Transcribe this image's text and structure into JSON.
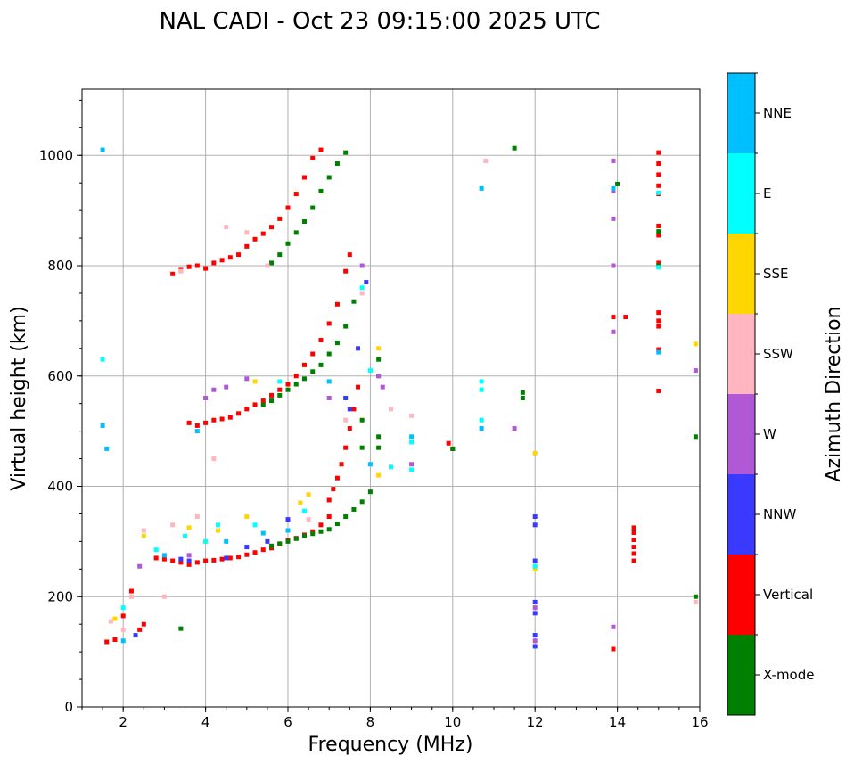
{
  "chart_data": {
    "type": "scatter",
    "title": "NAL CADI - Oct 23 09:15:00 2025 UTC",
    "xlabel": "Frequency (MHz)",
    "ylabel": "Virtual height (km)",
    "xlim": [
      1,
      16
    ],
    "ylim": [
      0,
      1120
    ],
    "xticks": [
      2,
      4,
      6,
      8,
      10,
      12,
      14,
      16
    ],
    "yticks": [
      0,
      200,
      400,
      600,
      800,
      1000
    ],
    "grid": true,
    "colorbar": {
      "label": "Azimuth Direction",
      "categories": [
        {
          "name": "X-mode",
          "color": "#008000"
        },
        {
          "name": "Vertical",
          "color": "#ff0000"
        },
        {
          "name": "NNW",
          "color": "#3a3aff"
        },
        {
          "name": "W",
          "color": "#b158d6"
        },
        {
          "name": "SSW",
          "color": "#ffb6c1"
        },
        {
          "name": "SSE",
          "color": "#ffd700"
        },
        {
          "name": "E",
          "color": "#00ffff"
        },
        {
          "name": "NNE",
          "color": "#00bfff"
        }
      ]
    },
    "series": [
      {
        "name": "Vertical",
        "points": [
          [
            1.6,
            118
          ],
          [
            1.8,
            122
          ],
          [
            2.0,
            165
          ],
          [
            2.2,
            210
          ],
          [
            2.4,
            140
          ],
          [
            2.5,
            150
          ],
          [
            2.8,
            270
          ],
          [
            3.0,
            268
          ],
          [
            3.2,
            265
          ],
          [
            3.4,
            262
          ],
          [
            3.6,
            258
          ],
          [
            3.8,
            262
          ],
          [
            4.0,
            265
          ],
          [
            4.2,
            266
          ],
          [
            4.4,
            268
          ],
          [
            4.6,
            270
          ],
          [
            4.8,
            272
          ],
          [
            5.0,
            276
          ],
          [
            5.2,
            280
          ],
          [
            5.4,
            285
          ],
          [
            5.6,
            288
          ],
          [
            5.8,
            295
          ],
          [
            6.0,
            302
          ],
          [
            6.2,
            306
          ],
          [
            6.4,
            312
          ],
          [
            6.6,
            318
          ],
          [
            6.8,
            330
          ],
          [
            7.0,
            345
          ],
          [
            7.0,
            375
          ],
          [
            7.1,
            395
          ],
          [
            7.2,
            415
          ],
          [
            7.3,
            440
          ],
          [
            7.4,
            470
          ],
          [
            7.5,
            505
          ],
          [
            7.6,
            540
          ],
          [
            7.7,
            580
          ],
          [
            3.6,
            515
          ],
          [
            3.8,
            510
          ],
          [
            4.0,
            515
          ],
          [
            4.2,
            520
          ],
          [
            4.4,
            522
          ],
          [
            4.6,
            525
          ],
          [
            4.8,
            532
          ],
          [
            5.0,
            540
          ],
          [
            5.2,
            548
          ],
          [
            5.4,
            555
          ],
          [
            5.6,
            565
          ],
          [
            5.8,
            575
          ],
          [
            6.0,
            585
          ],
          [
            6.2,
            600
          ],
          [
            6.4,
            620
          ],
          [
            6.6,
            640
          ],
          [
            6.8,
            665
          ],
          [
            7.0,
            695
          ],
          [
            7.2,
            730
          ],
          [
            7.4,
            790
          ],
          [
            7.5,
            820
          ],
          [
            3.2,
            785
          ],
          [
            3.4,
            792
          ],
          [
            3.6,
            798
          ],
          [
            3.8,
            800
          ],
          [
            4.0,
            795
          ],
          [
            4.2,
            805
          ],
          [
            4.4,
            810
          ],
          [
            4.6,
            815
          ],
          [
            4.8,
            820
          ],
          [
            5.0,
            835
          ],
          [
            5.2,
            848
          ],
          [
            5.4,
            858
          ],
          [
            5.6,
            870
          ],
          [
            5.8,
            885
          ],
          [
            6.0,
            905
          ],
          [
            6.2,
            930
          ],
          [
            6.4,
            960
          ],
          [
            6.6,
            995
          ],
          [
            6.8,
            1010
          ],
          [
            9.9,
            478
          ],
          [
            10.0,
            468
          ],
          [
            13.9,
            707
          ],
          [
            14.2,
            707
          ],
          [
            13.9,
            105
          ],
          [
            14.4,
            265
          ],
          [
            14.4,
            278
          ],
          [
            14.4,
            290
          ],
          [
            14.4,
            303
          ],
          [
            14.4,
            316
          ],
          [
            14.4,
            325
          ],
          [
            15.0,
            1005
          ],
          [
            15.0,
            985
          ],
          [
            15.0,
            965
          ],
          [
            15.0,
            945
          ],
          [
            15.0,
            930
          ],
          [
            15.0,
            872
          ],
          [
            15.0,
            855
          ],
          [
            15.0,
            805
          ],
          [
            15.0,
            715
          ],
          [
            15.0,
            700
          ],
          [
            15.0,
            690
          ],
          [
            15.0,
            648
          ],
          [
            15.0,
            573
          ]
        ]
      },
      {
        "name": "X-mode",
        "points": [
          [
            5.6,
            292
          ],
          [
            5.8,
            296
          ],
          [
            6.0,
            300
          ],
          [
            6.2,
            305
          ],
          [
            6.4,
            310
          ],
          [
            6.6,
            314
          ],
          [
            6.8,
            318
          ],
          [
            7.0,
            322
          ],
          [
            7.2,
            332
          ],
          [
            7.4,
            345
          ],
          [
            7.6,
            358
          ],
          [
            7.8,
            372
          ],
          [
            8.0,
            390
          ],
          [
            5.4,
            548
          ],
          [
            5.6,
            555
          ],
          [
            5.8,
            565
          ],
          [
            6.0,
            575
          ],
          [
            6.2,
            585
          ],
          [
            6.4,
            595
          ],
          [
            6.6,
            608
          ],
          [
            6.8,
            620
          ],
          [
            7.0,
            640
          ],
          [
            7.2,
            660
          ],
          [
            7.4,
            690
          ],
          [
            7.6,
            735
          ],
          [
            5.6,
            805
          ],
          [
            5.8,
            820
          ],
          [
            6.0,
            840
          ],
          [
            6.2,
            860
          ],
          [
            6.4,
            880
          ],
          [
            6.6,
            905
          ],
          [
            6.8,
            935
          ],
          [
            7.0,
            960
          ],
          [
            7.2,
            985
          ],
          [
            7.4,
            1005
          ],
          [
            7.8,
            470
          ],
          [
            7.8,
            520
          ],
          [
            8.2,
            470
          ],
          [
            8.2,
            490
          ],
          [
            8.2,
            600
          ],
          [
            8.2,
            630
          ],
          [
            10.0,
            468
          ],
          [
            11.5,
            1013
          ],
          [
            11.7,
            560
          ],
          [
            11.7,
            570
          ],
          [
            14.0,
            948
          ],
          [
            15.0,
            862
          ],
          [
            15.0,
            800
          ],
          [
            15.9,
            490
          ],
          [
            15.9,
            200
          ],
          [
            3.4,
            142
          ]
        ]
      },
      {
        "name": "NNW",
        "points": [
          [
            2.3,
            130
          ],
          [
            3.4,
            268
          ],
          [
            3.6,
            265
          ],
          [
            4.5,
            270
          ],
          [
            5.0,
            290
          ],
          [
            5.5,
            300
          ],
          [
            6.0,
            340
          ],
          [
            7.4,
            560
          ],
          [
            7.5,
            540
          ],
          [
            7.7,
            650
          ],
          [
            7.9,
            770
          ],
          [
            12.0,
            330
          ],
          [
            12.0,
            345
          ],
          [
            12.0,
            265
          ],
          [
            12.0,
            190
          ],
          [
            12.0,
            170
          ],
          [
            12.0,
            130
          ],
          [
            12.0,
            110
          ]
        ]
      },
      {
        "name": "W",
        "points": [
          [
            2.4,
            255
          ],
          [
            3.6,
            275
          ],
          [
            4.0,
            560
          ],
          [
            4.2,
            575
          ],
          [
            4.5,
            580
          ],
          [
            5.0,
            595
          ],
          [
            7.0,
            560
          ],
          [
            7.8,
            800
          ],
          [
            8.2,
            600
          ],
          [
            8.3,
            580
          ],
          [
            9.0,
            440
          ],
          [
            11.5,
            505
          ],
          [
            13.9,
            990
          ],
          [
            13.9,
            935
          ],
          [
            13.9,
            885
          ],
          [
            13.9,
            800
          ],
          [
            13.9,
            680
          ],
          [
            13.9,
            145
          ],
          [
            12.0,
            180
          ],
          [
            12.0,
            120
          ],
          [
            15.9,
            610
          ]
        ]
      },
      {
        "name": "SSW",
        "points": [
          [
            1.7,
            155
          ],
          [
            2.0,
            140
          ],
          [
            2.2,
            200
          ],
          [
            2.5,
            320
          ],
          [
            3.0,
            200
          ],
          [
            3.2,
            330
          ],
          [
            3.4,
            790
          ],
          [
            3.8,
            345
          ],
          [
            4.2,
            450
          ],
          [
            4.5,
            870
          ],
          [
            5.0,
            860
          ],
          [
            5.5,
            800
          ],
          [
            6.5,
            340
          ],
          [
            7.4,
            520
          ],
          [
            7.8,
            750
          ],
          [
            8.5,
            540
          ],
          [
            10.8,
            990
          ],
          [
            15.9,
            190
          ],
          [
            9.0,
            528
          ]
        ]
      },
      {
        "name": "SSE",
        "points": [
          [
            1.8,
            160
          ],
          [
            2.5,
            310
          ],
          [
            3.6,
            325
          ],
          [
            4.0,
            300
          ],
          [
            4.3,
            320
          ],
          [
            5.0,
            345
          ],
          [
            5.2,
            590
          ],
          [
            6.3,
            370
          ],
          [
            6.5,
            385
          ],
          [
            8.2,
            420
          ],
          [
            8.2,
            650
          ],
          [
            12.0,
            460
          ],
          [
            12.0,
            250
          ],
          [
            15.9,
            658
          ]
        ]
      },
      {
        "name": "E",
        "points": [
          [
            1.5,
            630
          ],
          [
            2.0,
            180
          ],
          [
            2.8,
            285
          ],
          [
            3.5,
            310
          ],
          [
            4.0,
            300
          ],
          [
            4.3,
            330
          ],
          [
            5.2,
            330
          ],
          [
            5.8,
            590
          ],
          [
            6.4,
            355
          ],
          [
            7.8,
            760
          ],
          [
            8.0,
            610
          ],
          [
            8.5,
            435
          ],
          [
            9.0,
            430
          ],
          [
            9.0,
            480
          ],
          [
            10.7,
            590
          ],
          [
            10.7,
            575
          ],
          [
            10.7,
            520
          ],
          [
            12.0,
            255
          ],
          [
            15.0,
            932
          ],
          [
            15.0,
            797
          ]
        ]
      },
      {
        "name": "NNE",
        "points": [
          [
            1.5,
            1010
          ],
          [
            1.5,
            510
          ],
          [
            1.6,
            468
          ],
          [
            2.0,
            120
          ],
          [
            3.0,
            275
          ],
          [
            3.8,
            500
          ],
          [
            4.5,
            300
          ],
          [
            5.4,
            315
          ],
          [
            6.0,
            320
          ],
          [
            7.0,
            590
          ],
          [
            8.0,
            440
          ],
          [
            9.0,
            490
          ],
          [
            10.7,
            940
          ],
          [
            10.7,
            505
          ],
          [
            13.9,
            940
          ],
          [
            15.0,
            643
          ]
        ]
      }
    ]
  }
}
